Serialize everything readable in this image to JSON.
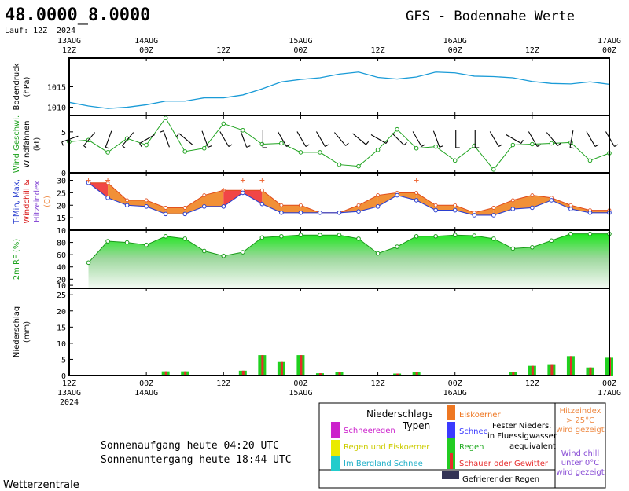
{
  "header": {
    "coordinates": "48.0000_8.0000",
    "run_label": "Lauf: 12Z",
    "run_year": "2024",
    "title": "GFS - Bodennahe Werte"
  },
  "time_axis": {
    "top_labels": [
      {
        "t": 0,
        "l1": "13AUG",
        "l2": "12Z"
      },
      {
        "t": 12,
        "l1": "14AUG",
        "l2": "00Z"
      },
      {
        "t": 24,
        "l1": "",
        "l2": "12Z"
      },
      {
        "t": 36,
        "l1": "15AUG",
        "l2": "00Z"
      },
      {
        "t": 48,
        "l1": "",
        "l2": "12Z"
      },
      {
        "t": 60,
        "l1": "16AUG",
        "l2": "00Z"
      },
      {
        "t": 72,
        "l1": "",
        "l2": "12Z"
      },
      {
        "t": 84,
        "l1": "17AUG",
        "l2": "00Z"
      }
    ],
    "bottom_labels": [
      {
        "t": 0,
        "l1": "12Z",
        "l2": "13AUG",
        "l3": "2024"
      },
      {
        "t": 12,
        "l1": "00Z",
        "l2": "14AUG",
        "l3": ""
      },
      {
        "t": 24,
        "l1": "12Z",
        "l2": "",
        "l3": ""
      },
      {
        "t": 36,
        "l1": "00Z",
        "l2": "15AUG",
        "l3": ""
      },
      {
        "t": 48,
        "l1": "12Z",
        "l2": "",
        "l3": ""
      },
      {
        "t": 60,
        "l1": "00Z",
        "l2": "16AUG",
        "l3": ""
      },
      {
        "t": 72,
        "l1": "12Z",
        "l2": "",
        "l3": ""
      },
      {
        "t": 84,
        "l1": "00Z",
        "l2": "17AUG",
        "l3": ""
      }
    ],
    "range_hours": [
      0,
      84
    ]
  },
  "chart_data": [
    {
      "type": "line",
      "panel": "pressure",
      "ylabel_lines": [
        "Bodendruck",
        "(hPa)"
      ],
      "ylim": [
        1008,
        1022
      ],
      "yticks": [
        1010,
        1015
      ],
      "color": "#1a9bd7",
      "x": [
        0,
        3,
        6,
        9,
        12,
        15,
        18,
        21,
        24,
        27,
        30,
        33,
        36,
        39,
        42,
        45,
        48,
        51,
        54,
        57,
        60,
        63,
        66,
        69,
        72,
        75,
        78,
        81,
        84
      ],
      "values": [
        1011.2,
        1010.3,
        1009.7,
        1010.0,
        1010.6,
        1011.5,
        1011.5,
        1012.3,
        1012.3,
        1013.0,
        1014.5,
        1016.2,
        1016.8,
        1017.2,
        1018.1,
        1018.6,
        1017.3,
        1016.9,
        1017.4,
        1018.6,
        1018.4,
        1017.6,
        1017.5,
        1017.2,
        1016.3,
        1015.8,
        1015.7,
        1016.2,
        1015.6
      ]
    },
    {
      "type": "line",
      "panel": "wind",
      "ylabel_lines": [
        "Wind Geschwi.",
        "Windfahnen",
        "(kt)"
      ],
      "ylabel_colors": [
        "#1fa31f",
        "#000000",
        "#000000"
      ],
      "ylim": [
        0,
        7
      ],
      "yticks": [
        0,
        5
      ],
      "color": "#1fa31f",
      "x": [
        0,
        3,
        6,
        9,
        12,
        15,
        18,
        21,
        24,
        27,
        30,
        33,
        36,
        39,
        42,
        45,
        48,
        51,
        54,
        57,
        60,
        63,
        66,
        69,
        72,
        75,
        78,
        81,
        84
      ],
      "values": [
        3.8,
        4.0,
        2.5,
        4.2,
        3.4,
        6.7,
        2.6,
        3.0,
        6.0,
        5.2,
        3.5,
        3.6,
        2.5,
        2.5,
        1.0,
        0.8,
        2.8,
        5.3,
        3.0,
        3.2,
        1.5,
        3.3,
        0.4,
        3.4,
        3.5,
        3.6,
        3.7,
        1.5,
        2.4
      ],
      "barb_angles": [
        200,
        230,
        250,
        230,
        210,
        110,
        140,
        290,
        300,
        290,
        270,
        300,
        300,
        300,
        310,
        320,
        330,
        315,
        300,
        290,
        270,
        270,
        300,
        330,
        300,
        310,
        260,
        300,
        300
      ]
    },
    {
      "type": "area",
      "panel": "temperature",
      "ylabel_lines": [
        "T-Min, Max,",
        "Windchill &",
        "Hitzeindex",
        "(C)"
      ],
      "ylabel_colors": [
        "#2b3fcf",
        "#d91a1a",
        "#8a4fd6",
        "#ee8a44",
        "#000000"
      ],
      "ylim": [
        10,
        33
      ],
      "yticks": [
        10,
        15,
        20,
        25,
        30
      ],
      "x": [
        3,
        6,
        9,
        12,
        15,
        18,
        21,
        24,
        27,
        30,
        33,
        36,
        39,
        42,
        45,
        48,
        51,
        54,
        57,
        60,
        63,
        66,
        69,
        72,
        75,
        78,
        81,
        84
      ],
      "series": [
        {
          "name": "T-Min",
          "values": [
            29,
            23,
            20,
            19.5,
            16.5,
            16.5,
            19.5,
            19.5,
            25,
            20.5,
            17,
            17,
            17,
            17,
            17.5,
            19.5,
            24,
            22,
            18,
            18,
            16,
            16,
            18.5,
            19,
            22,
            18.5,
            17,
            17
          ]
        },
        {
          "name": "T-Max",
          "values": [
            29,
            29,
            22,
            22,
            19,
            19,
            24,
            26,
            26,
            26,
            20,
            20,
            17,
            17,
            20,
            24,
            25,
            25,
            20,
            20,
            17,
            19,
            22,
            24,
            23,
            20,
            18,
            18
          ]
        },
        {
          "name": "Hitzeindex",
          "values": [
            30,
            30,
            null,
            null,
            null,
            null,
            null,
            26,
            30,
            30,
            null,
            null,
            null,
            null,
            null,
            null,
            null,
            30,
            null,
            null,
            null,
            null,
            null,
            null,
            null,
            null,
            null,
            null
          ]
        }
      ]
    },
    {
      "type": "area",
      "panel": "humidity",
      "ylabel_lines": [
        "2m RF (%)"
      ],
      "ylabel_colors": [
        "#1fa31f"
      ],
      "ylim": [
        5,
        100
      ],
      "yticks": [
        20,
        40,
        60,
        80,
        10
      ],
      "x": [
        3,
        6,
        9,
        12,
        15,
        18,
        21,
        24,
        27,
        30,
        33,
        36,
        39,
        42,
        45,
        48,
        51,
        54,
        57,
        60,
        63,
        66,
        69,
        72,
        75,
        78,
        81,
        84
      ],
      "values": [
        47,
        82,
        80,
        76,
        90,
        86,
        66,
        58,
        64,
        88,
        90,
        92,
        92,
        92,
        86,
        62,
        73,
        90,
        90,
        92,
        91,
        86,
        70,
        72,
        83,
        94,
        94,
        94
      ]
    },
    {
      "type": "bar",
      "panel": "precipitation",
      "ylabel_lines": [
        "Niederschlag",
        "(mm)"
      ],
      "ylim": [
        0,
        27
      ],
      "yticks": [
        0,
        5,
        10,
        15,
        20,
        25
      ],
      "x": [
        12,
        15,
        18,
        21,
        24,
        27,
        30,
        33,
        36,
        39,
        42,
        45,
        48,
        51,
        54,
        57,
        60,
        63,
        66,
        69,
        72,
        75,
        78,
        81,
        84
      ],
      "values": [
        0,
        1.3,
        1.3,
        0,
        0,
        1.5,
        6.3,
        4.2,
        6.3,
        0.7,
        1.2,
        0,
        0,
        0.6,
        1.1,
        0,
        0,
        0,
        0,
        1.1,
        3.0,
        3.5,
        6.0,
        2.5,
        5.5
      ],
      "color_rain": "#1fd11f",
      "color_showers": "#e62b2b"
    }
  ],
  "legend": {
    "title_line1": "Niederschlags",
    "title_line2": "Typen",
    "items": [
      {
        "label": "Schneeregen",
        "color": "#cc22cc",
        "text_color": "#cc22cc"
      },
      {
        "label": "Regen und Eiskoerner",
        "color": "#eaea00",
        "text_color": "#cccc00"
      },
      {
        "label": "Im Bergland Schnee",
        "color": "#22cccc",
        "text_color": "#22b0c8"
      },
      {
        "label": "Eiskoerner",
        "color": "#ee7722",
        "text_color": "#ee7722"
      },
      {
        "label": "Schnee",
        "color": "#3a3aff",
        "text_color": "#3a3aff"
      },
      {
        "label": "Regen",
        "color": "#22cc22",
        "text_color": "#22aa22"
      },
      {
        "label": "Schauer oder Gewitter",
        "color": "#e62b2b",
        "text_color": "#e62b2b"
      },
      {
        "label": "Gefrierender Regen",
        "color": "#333355",
        "text_color": "#000000"
      }
    ],
    "fester_line1": "Fester Nieders.",
    "fester_line2": "in Fluessigwasser",
    "fester_line3": "aequivalent",
    "hitze_lines": [
      "Hitzeindex",
      "> 25°C",
      "wird gezeigt"
    ],
    "hitze_color": "#ee8a44",
    "chill_lines": [
      "Wind chill",
      "unter 0°C",
      "wird gezeigt"
    ],
    "chill_color": "#8a4fd6"
  },
  "sun": {
    "sunrise": "Sonnenaufgang heute 04:20 UTC",
    "sunset": "Sonnenuntergang heute 18:44 UTC"
  },
  "footer": {
    "brand": "Wetterzentrale"
  }
}
